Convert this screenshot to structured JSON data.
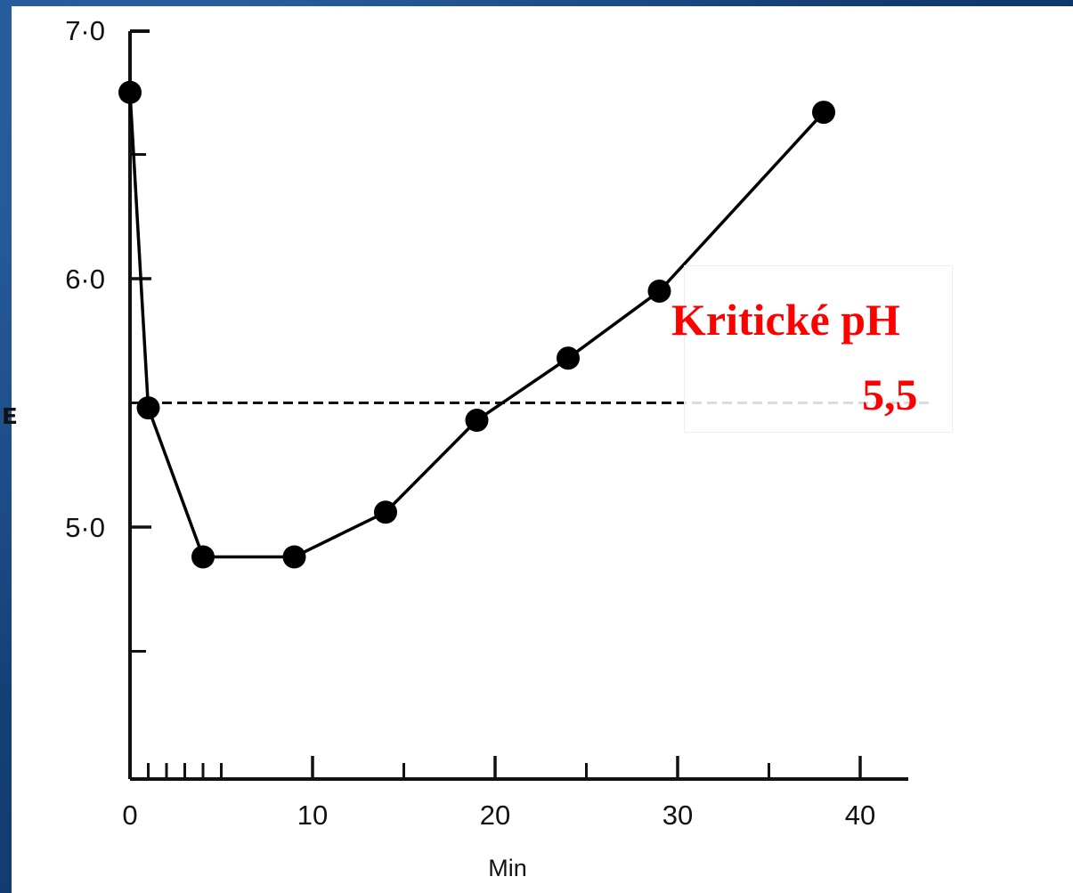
{
  "chart_data": {
    "type": "line",
    "title": "",
    "xlabel": "Min",
    "ylabel": "",
    "xlim": [
      0,
      40
    ],
    "ylim": [
      4.0,
      7.0
    ],
    "x_ticks": [
      0,
      10,
      20,
      30,
      40
    ],
    "x_tick_labels": [
      "0",
      "10",
      "20",
      "30",
      "40"
    ],
    "x_minor_ticks": [
      1,
      2,
      3,
      4,
      5,
      15,
      25,
      35
    ],
    "y_ticks": [
      5.0,
      6.0,
      7.0
    ],
    "y_tick_labels": [
      "5·0",
      "6·0",
      "7·0"
    ],
    "y_minor_ticks": [
      4.5,
      6.5
    ],
    "grid": false,
    "series": [
      {
        "x": [
          0,
          1,
          4,
          9,
          14,
          19,
          24,
          29,
          38
        ],
        "y": [
          6.75,
          5.48,
          4.88,
          4.88,
          5.06,
          5.43,
          5.68,
          5.95,
          6.67
        ],
        "color": "#000000"
      }
    ],
    "reference_line": {
      "y": 5.5,
      "style": "dashed",
      "x_from": 0,
      "x_to": 40
    },
    "annotation": {
      "line1": "Kritické pH",
      "line2": "5,5",
      "color": "#ff0000"
    },
    "y_side_glyph": "ᴇ"
  }
}
